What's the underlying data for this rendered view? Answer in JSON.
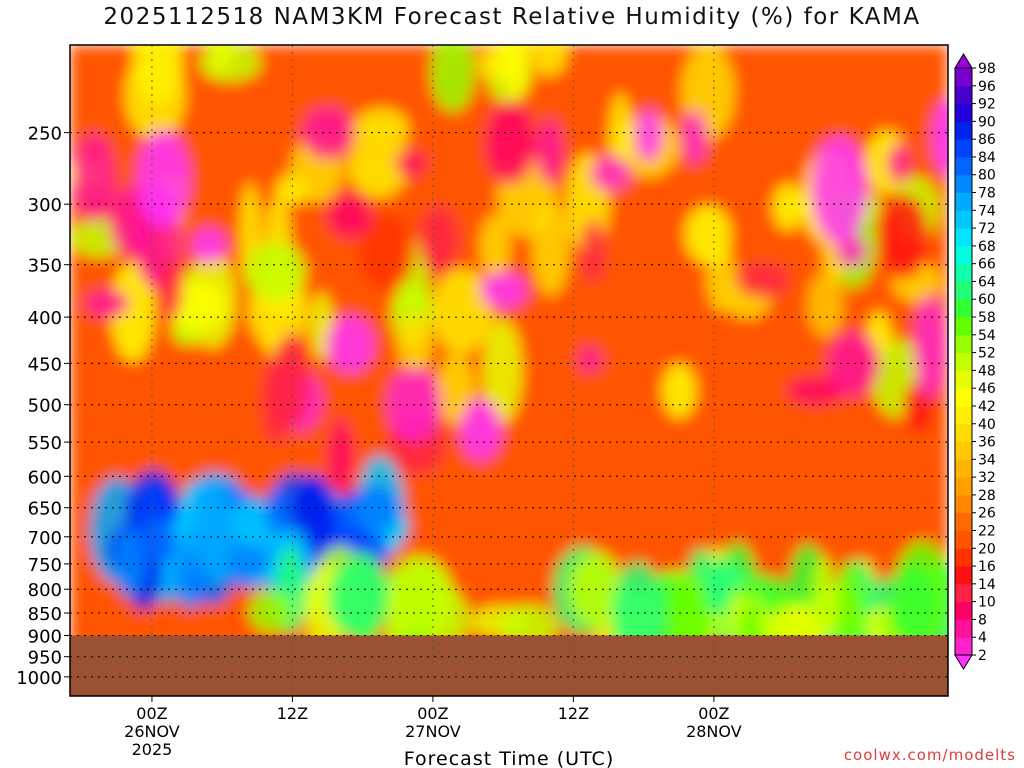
{
  "title": "2025112518 NAM3KM Forecast Relative Humidity (%) for KAMA",
  "credit": "coolwx.com/modelts",
  "chart_data": {
    "type": "heatmap",
    "title": "2025112518 NAM3KM Forecast Relative Humidity (%) for KAMA",
    "xlabel": "Forecast Time (UTC)",
    "ylabel": "",
    "x_range_hours": [
      -7,
      68
    ],
    "y_axis": {
      "label_values": [
        "250",
        "300",
        "350",
        "400",
        "450",
        "500",
        "550",
        "600",
        "650",
        "700",
        "750",
        "800",
        "850",
        "900",
        "950",
        "1000"
      ],
      "lim": [
        1050,
        200
      ],
      "scale": "log"
    },
    "x_ticks": [
      {
        "h": 0,
        "lines": [
          "00Z",
          "26NOV",
          "2025"
        ]
      },
      {
        "h": 12,
        "lines": [
          "12Z"
        ]
      },
      {
        "h": 24,
        "lines": [
          "00Z",
          "27NOV"
        ]
      },
      {
        "h": 36,
        "lines": [
          "12Z"
        ]
      },
      {
        "h": 48,
        "lines": [
          "00Z",
          "28NOV"
        ]
      }
    ],
    "grid": true,
    "ground_color": "#9a5232",
    "legend_placement": "right",
    "colorbar": {
      "levels": [
        2,
        4,
        8,
        10,
        14,
        16,
        20,
        22,
        26,
        28,
        32,
        34,
        36,
        40,
        42,
        46,
        48,
        52,
        54,
        58,
        60,
        64,
        66,
        68,
        72,
        74,
        78,
        80,
        84,
        86,
        90,
        92,
        96,
        98
      ],
      "colors": [
        "#ff33ff",
        "#ff22cc",
        "#ff1199",
        "#ff0066",
        "#ff2244",
        "#ff1111",
        "#ff3300",
        "#ff5500",
        "#ff6a00",
        "#ff8800",
        "#ffa000",
        "#ffb400",
        "#ffc800",
        "#ffdc00",
        "#fff000",
        "#ffff00",
        "#e6ff00",
        "#c4ff00",
        "#99ff00",
        "#66ff00",
        "#33ff33",
        "#22ff77",
        "#11ffaa",
        "#00ffdd",
        "#00e6ff",
        "#00c8ff",
        "#00aaff",
        "#0088ff",
        "#0066ff",
        "#0044ff",
        "#0022ee",
        "#2200dd",
        "#4400cc",
        "#7700cc",
        "#9900dd"
      ]
    },
    "regions": [
      {
        "desc": "upper moist yellow-green plumes",
        "rh": 44,
        "t0": -6,
        "t1": 66,
        "p0": 200,
        "p1": 500
      },
      {
        "desc": "dry pink mid levels",
        "rh": 8,
        "t0": -6,
        "t1": 68,
        "p0": 250,
        "p1": 600
      },
      {
        "desc": "moist band",
        "rh": 80,
        "t0": -3,
        "t1": 20,
        "p0": 650,
        "p1": 780
      },
      {
        "desc": "low level green band",
        "rh": 55,
        "t0": 10,
        "t1": 68,
        "p0": 800,
        "p1": 900
      }
    ]
  }
}
